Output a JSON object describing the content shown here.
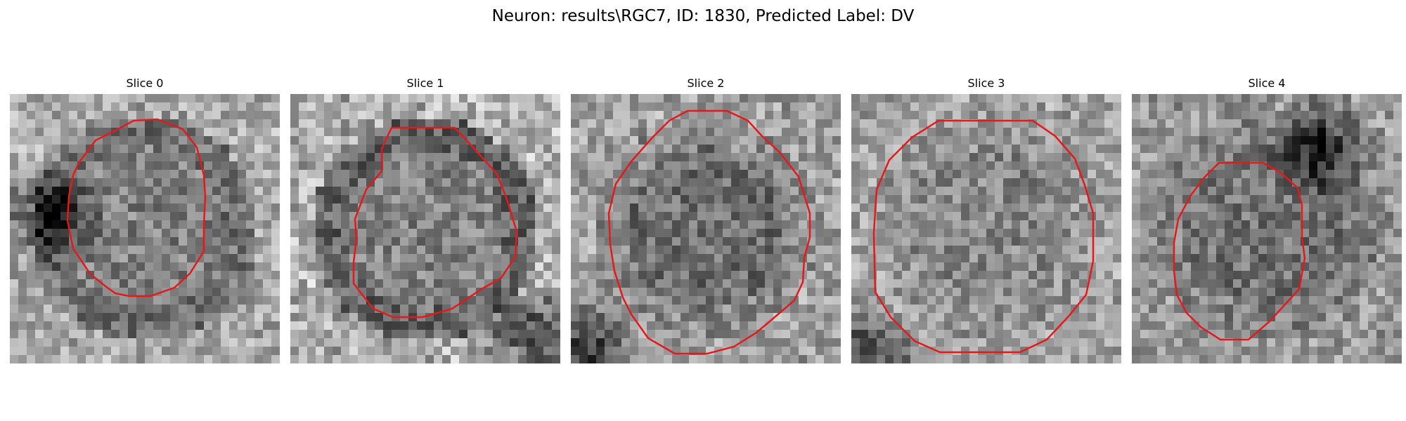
{
  "figure": {
    "title": "Neuron: results\\RGC7, ID: 1830, Predicted Label: DV"
  },
  "panels": [
    {
      "title": "Slice 0",
      "contour_color": "#e31a1c",
      "colormap": "gray"
    },
    {
      "title": "Slice 1",
      "contour_color": "#e31a1c",
      "colormap": "gray"
    },
    {
      "title": "Slice 2",
      "contour_color": "#e31a1c",
      "colormap": "gray"
    },
    {
      "title": "Slice 3",
      "contour_color": "#e31a1c",
      "colormap": "gray"
    },
    {
      "title": "Slice 4",
      "contour_color": "#e31a1c",
      "colormap": "gray"
    }
  ]
}
